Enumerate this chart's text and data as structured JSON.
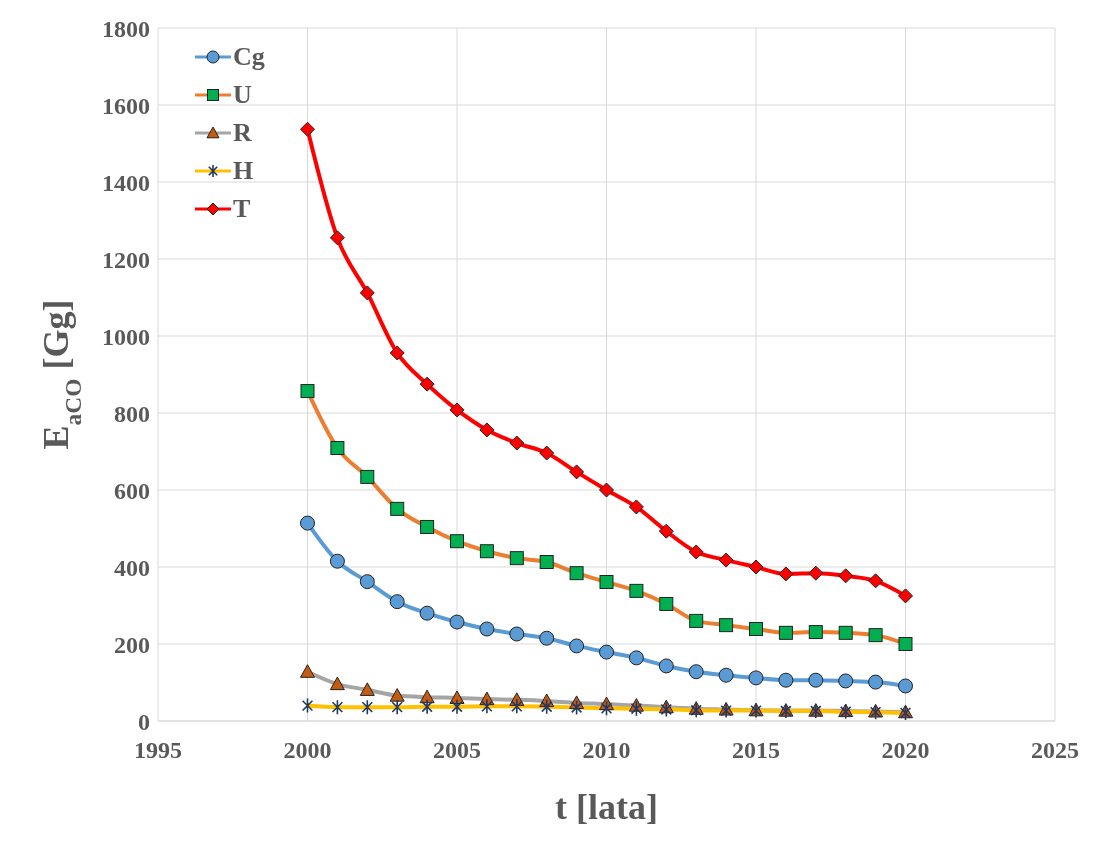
{
  "chart_data": {
    "type": "line",
    "xlabel": "t [lata]",
    "ylabel": "E$_{aCO}$ [Gg]",
    "x": [
      2000,
      2001,
      2002,
      2003,
      2004,
      2005,
      2006,
      2007,
      2008,
      2009,
      2010,
      2011,
      2012,
      2013,
      2014,
      2015,
      2016,
      2017,
      2018,
      2019,
      2020
    ],
    "xlim": [
      1995,
      2025
    ],
    "xticks": [
      1995,
      2000,
      2005,
      2010,
      2015,
      2020,
      2025
    ],
    "ylim": [
      0,
      1800
    ],
    "yticks": [
      0,
      200,
      400,
      600,
      800,
      1000,
      1200,
      1400,
      1600,
      1800
    ],
    "grid": true,
    "legend": "top left",
    "series": [
      {
        "name": "Cg",
        "color": "#5b9bd5",
        "marker": "circle",
        "values": [
          514,
          415,
          362,
          310,
          280,
          257,
          239,
          226,
          215,
          195,
          179,
          164,
          143,
          128,
          119,
          112,
          106,
          106,
          104,
          101,
          91
        ]
      },
      {
        "name": "U",
        "color": "#ed7d31",
        "marker": "square",
        "values": [
          857,
          709,
          634,
          551,
          504,
          467,
          441,
          423,
          413,
          384,
          361,
          338,
          304,
          260,
          249,
          239,
          229,
          231,
          229,
          223,
          200
        ]
      },
      {
        "name": "R",
        "color": "#a5a5a5",
        "marker": "triangle",
        "values": [
          128,
          96,
          81,
          66,
          62,
          60,
          57,
          55,
          52,
          47,
          44,
          40,
          36,
          32,
          30,
          28,
          27,
          27,
          26,
          25,
          23
        ]
      },
      {
        "name": "H",
        "color": "#ffc000",
        "marker": "cross",
        "values": [
          40,
          36,
          36,
          36,
          37,
          37,
          38,
          38,
          37,
          35,
          33,
          32,
          30,
          28,
          27,
          27,
          26,
          26,
          24,
          23,
          21
        ]
      },
      {
        "name": "T",
        "color": "#ff0000",
        "marker": "diamond",
        "values": [
          1537,
          1255,
          1112,
          956,
          875,
          808,
          756,
          722,
          696,
          647,
          600,
          556,
          493,
          439,
          418,
          400,
          382,
          384,
          377,
          364,
          325
        ]
      }
    ]
  }
}
